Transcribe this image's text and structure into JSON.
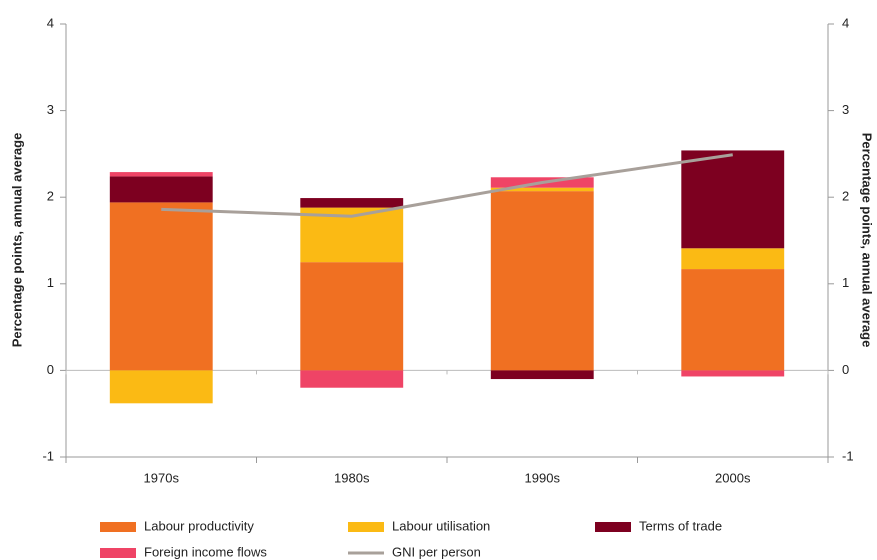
{
  "chart_data": {
    "type": "bar",
    "stacked": true,
    "categories": [
      "1970s",
      "1980s",
      "1990s",
      "2000s"
    ],
    "series": [
      {
        "name": "Labour productivity",
        "color": "#f07022",
        "values": [
          1.94,
          1.25,
          2.07,
          1.17
        ]
      },
      {
        "name": "Labour utilisation",
        "color": "#fbba14",
        "values": [
          -0.38,
          0.63,
          0.04,
          0.24
        ]
      },
      {
        "name": "Terms of trade",
        "color": "#7d0020",
        "values": [
          0.3,
          0.11,
          -0.1,
          1.13
        ]
      },
      {
        "name": "Foreign income flows",
        "color": "#ef4466",
        "values": [
          0.05,
          -0.2,
          0.12,
          -0.07
        ]
      },
      {
        "name": "GNI per person",
        "color": "#a8a09a",
        "type": "line",
        "values": [
          1.86,
          1.78,
          2.17,
          2.49
        ]
      }
    ],
    "ylim": [
      -1,
      4
    ],
    "yticks": [
      -1,
      0,
      1,
      2,
      3,
      4
    ],
    "y2lim": [
      -1,
      4
    ],
    "y2ticks": [
      -1,
      0,
      1,
      2,
      3,
      4
    ],
    "y_label": "Percentage points, annual average",
    "y2_label": "Percentage points, annual average"
  }
}
